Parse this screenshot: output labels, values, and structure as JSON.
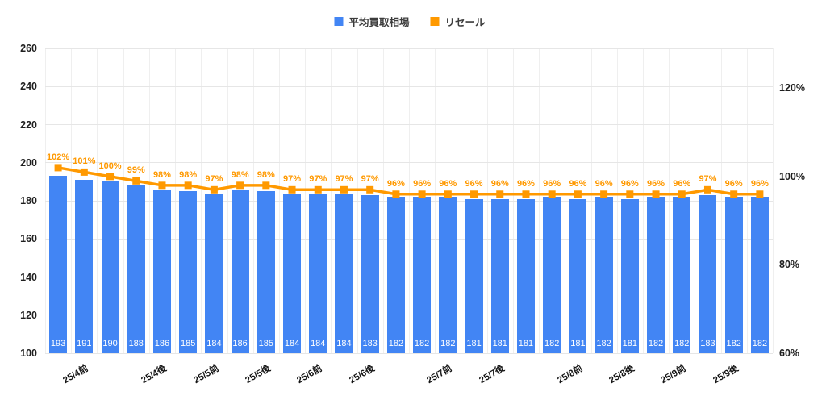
{
  "chart_data": {
    "type": "bar",
    "subtype": "combo-bar-line-dual-axis",
    "title": "",
    "x_labels": [
      "",
      "25/4前",
      "",
      "",
      "25/4後",
      "",
      "25/5前",
      "",
      "25/5後",
      "",
      "25/6前",
      "",
      "25/6後",
      "",
      "",
      "25/7前",
      "",
      "25/7後",
      "",
      "",
      "25/8前",
      "",
      "25/8後",
      "",
      "25/9前",
      "",
      "25/9後",
      ""
    ],
    "series": [
      {
        "name": "平均買取相場",
        "type": "bar",
        "axis": "left",
        "color": "#4285F4",
        "values": [
          193,
          191,
          190,
          188,
          186,
          185,
          184,
          186,
          185,
          184,
          184,
          184,
          183,
          182,
          182,
          182,
          181,
          181,
          181,
          182,
          181,
          182,
          181,
          182,
          182,
          183,
          182,
          182
        ]
      },
      {
        "name": "リセール",
        "type": "line",
        "axis": "right",
        "color": "#FF9900",
        "label_suffix": "%",
        "values": [
          102,
          101,
          100,
          99,
          98,
          98,
          97,
          98,
          98,
          97,
          97,
          97,
          97,
          96,
          96,
          96,
          96,
          96,
          96,
          96,
          96,
          96,
          96,
          96,
          96,
          97,
          96,
          96
        ]
      }
    ],
    "left_axis": {
      "min": 100,
      "max": 260,
      "ticks": [
        260,
        240,
        220,
        200,
        180,
        160,
        140,
        120,
        100
      ]
    },
    "right_axis": {
      "min": 60,
      "max": 129,
      "ticks": [
        120,
        100,
        80,
        60
      ],
      "suffix": "%"
    },
    "grid": true,
    "legend_position": "top-center",
    "colors": {
      "bar": "#4285F4",
      "line": "#FF9900",
      "pct_label": "#FF9900",
      "bar_value_label": "#ffffff",
      "grid_h": "#e6e6e6",
      "grid_v": "#efefef",
      "axis_text": "#1f1f1f"
    }
  }
}
